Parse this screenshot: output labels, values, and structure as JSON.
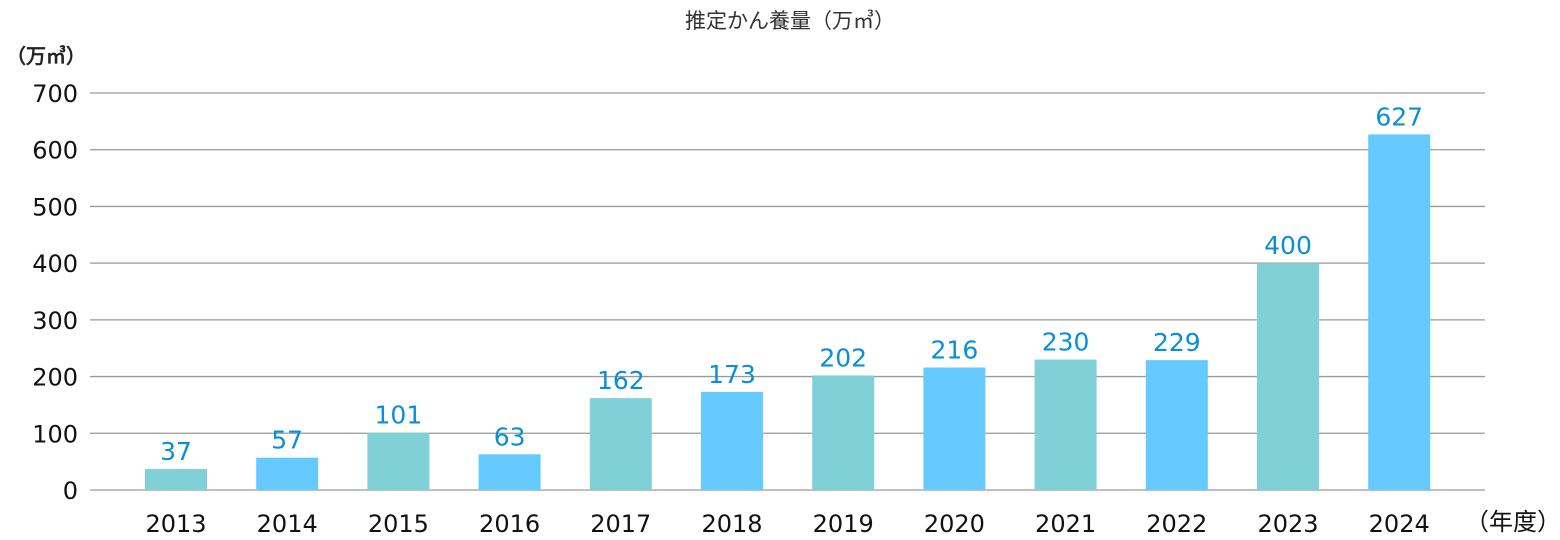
{
  "chart_data": {
    "type": "bar",
    "title": "推定かん養量（万㎥）",
    "ylabel": "（万㎥）",
    "xlabel": "（年度）",
    "categories": [
      "2013",
      "2014",
      "2015",
      "2016",
      "2017",
      "2018",
      "2019",
      "2020",
      "2021",
      "2022",
      "2023",
      "2024"
    ],
    "values": [
      37,
      57,
      101,
      63,
      162,
      173,
      202,
      216,
      230,
      229,
      400,
      627
    ],
    "data_labels": [
      "37",
      "57",
      "101",
      "63",
      "162",
      "173",
      "202",
      "216",
      "230",
      "229",
      "400",
      "627"
    ],
    "bar_colors": [
      "#7fd1d7",
      "#66c9ff",
      "#7fd1d7",
      "#66c9ff",
      "#7fd1d7",
      "#66c9ff",
      "#7fd1d7",
      "#66c9ff",
      "#7fd1d7",
      "#66c9ff",
      "#7fd1d7",
      "#66c9ff"
    ],
    "data_label_color": "#0a8fd6",
    "ylim": [
      0,
      700
    ],
    "yticks": [
      0,
      100,
      200,
      300,
      400,
      500,
      600,
      700
    ],
    "grid": true,
    "legend": "none"
  }
}
